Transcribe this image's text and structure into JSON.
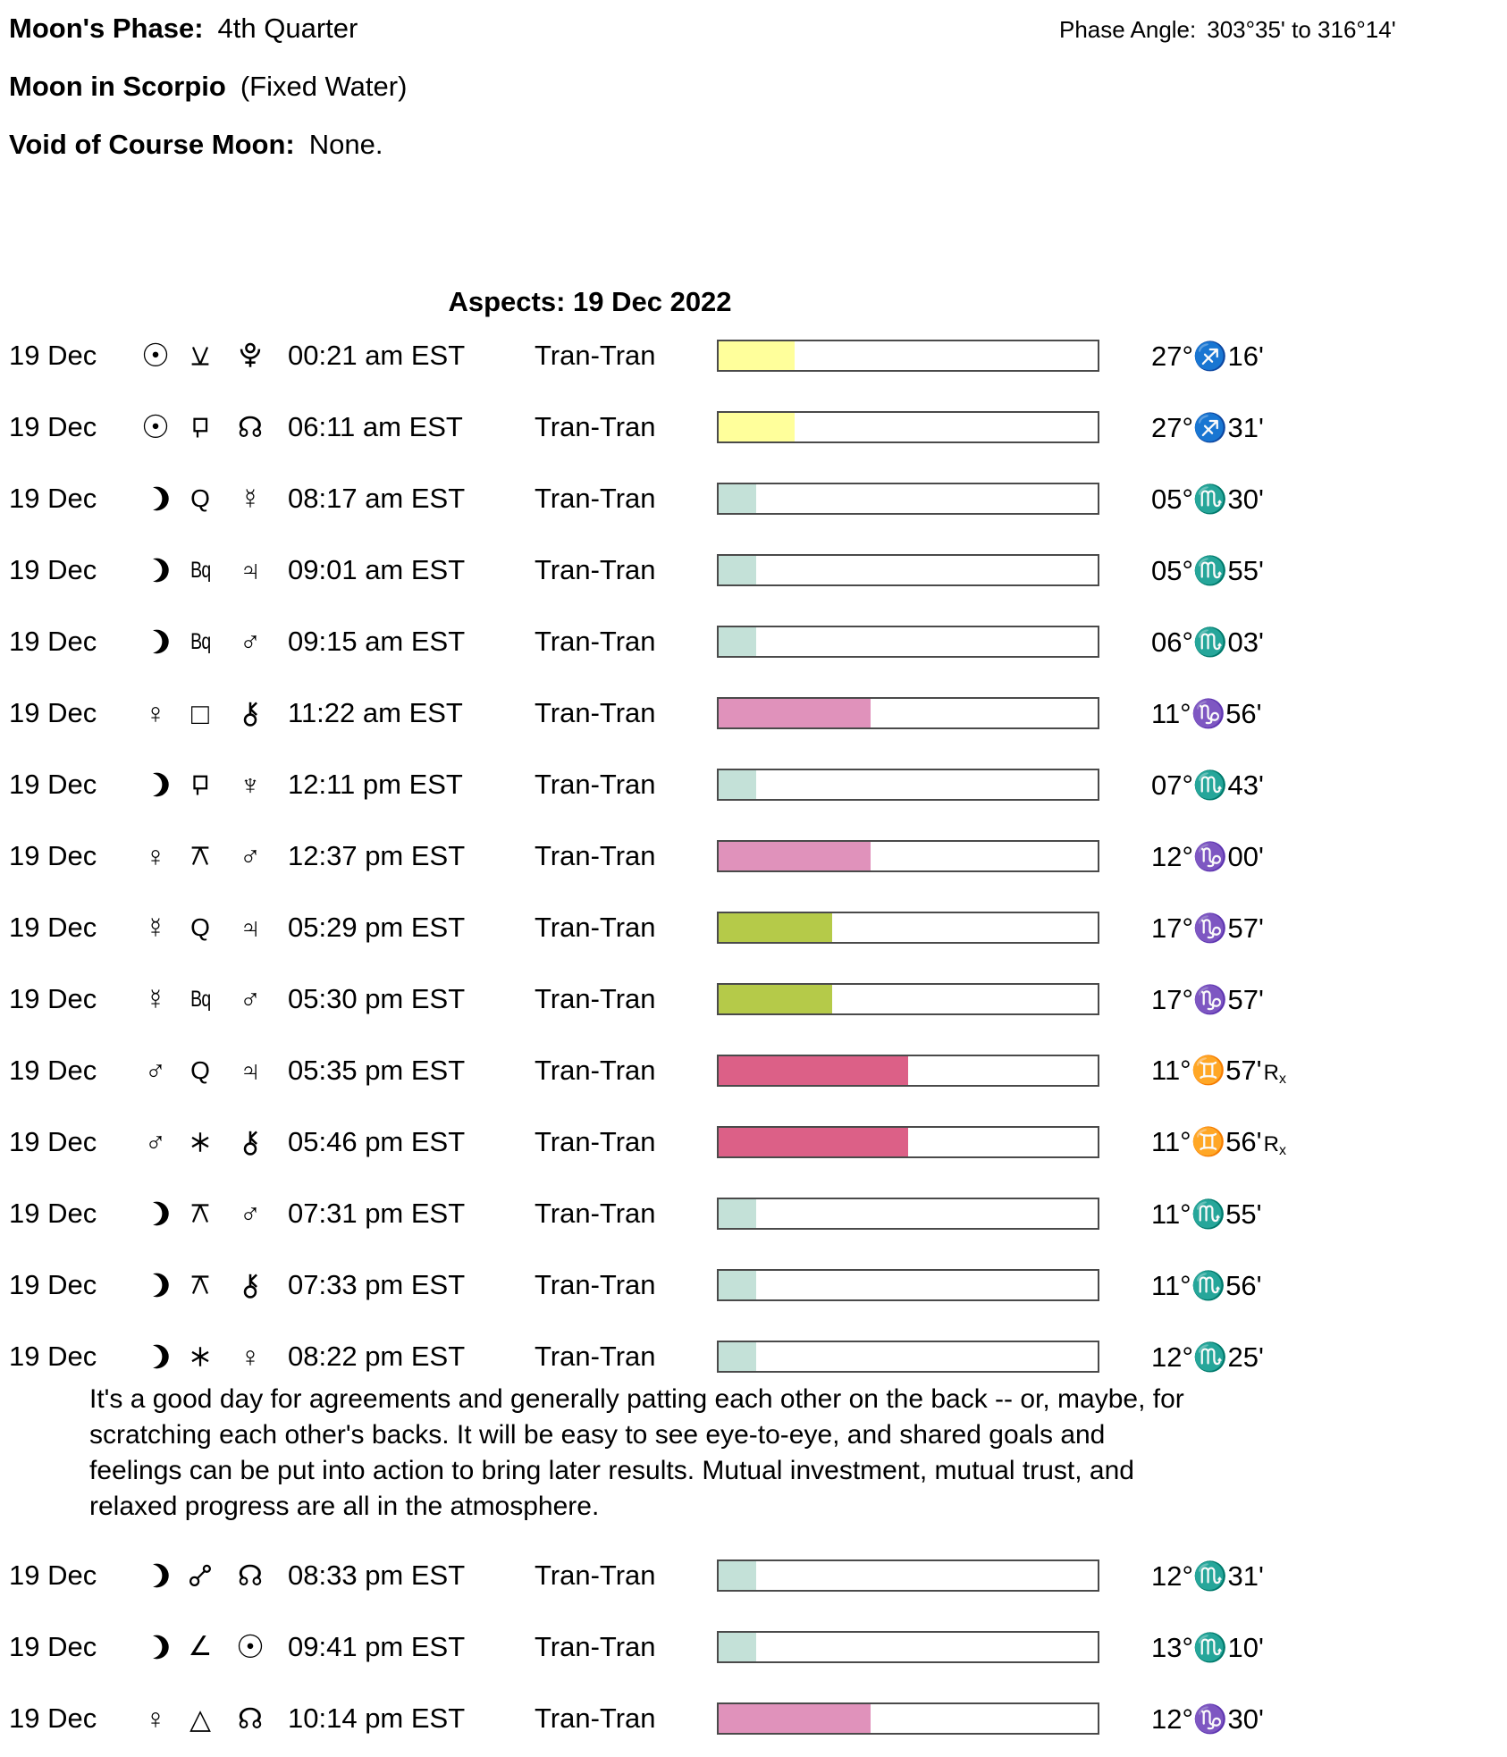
{
  "header": {
    "moons_phase_label": "Moon's Phase:",
    "moons_phase_value": "4th Quarter",
    "phase_angle_label": "Phase Angle:",
    "phase_angle_value": "303°35' to 316°14'",
    "moon_in_label": "Moon in Scorpio",
    "moon_in_value": "(Fixed Water)",
    "voc_label": "Void of Course Moon:",
    "voc_value": "None."
  },
  "aspects": {
    "title": "Aspects: 19 Dec 2022",
    "interpretation": "It's a good day for agreements and generally patting each other on the back -- or, maybe, for scratching each other's backs. It will be easy to see eye-to-eye, and shared goals and feelings can be put into action to bring later results. Mutual investment, mutual trust, and relaxed progress are all in the atmosphere.",
    "interpretation_after_row": 15,
    "bar_border_color": "#4a4a4a",
    "bar_colors": {
      "yellow": "#ffff9b",
      "teal": "#c4e1d8",
      "pink": "#e092bb",
      "green": "#b5ca49",
      "rose": "#dc6087"
    },
    "rows": [
      {
        "date": "19 Dec",
        "p1": "sun",
        "aspect": "semisextile",
        "p2": "pluto",
        "time": "00:21 am EST",
        "type": "Tran-Tran",
        "bar_color": "yellow",
        "bar_percent": 20,
        "position": {
          "deg": "27°",
          "sign": "♐",
          "min": "16'",
          "retro": ""
        }
      },
      {
        "date": "19 Dec",
        "p1": "sun",
        "aspect": "sesquiquadrate",
        "p2": "north-node",
        "time": "06:11 am EST",
        "type": "Tran-Tran",
        "bar_color": "yellow",
        "bar_percent": 20,
        "position": {
          "deg": "27°",
          "sign": "♐",
          "min": "31'",
          "retro": ""
        }
      },
      {
        "date": "19 Dec",
        "p1": "moon",
        "aspect": "quintile",
        "p2": "mercury",
        "time": "08:17 am EST",
        "type": "Tran-Tran",
        "bar_color": "teal",
        "bar_percent": 10,
        "position": {
          "deg": "05°",
          "sign": "♏",
          "min": "30'",
          "retro": ""
        }
      },
      {
        "date": "19 Dec",
        "p1": "moon",
        "aspect": "biquintile",
        "p2": "jupiter",
        "time": "09:01 am EST",
        "type": "Tran-Tran",
        "bar_color": "teal",
        "bar_percent": 10,
        "position": {
          "deg": "05°",
          "sign": "♏",
          "min": "55'",
          "retro": ""
        }
      },
      {
        "date": "19 Dec",
        "p1": "moon",
        "aspect": "biquintile",
        "p2": "mars",
        "time": "09:15 am EST",
        "type": "Tran-Tran",
        "bar_color": "teal",
        "bar_percent": 10,
        "position": {
          "deg": "06°",
          "sign": "♏",
          "min": "03'",
          "retro": ""
        }
      },
      {
        "date": "19 Dec",
        "p1": "venus",
        "aspect": "square",
        "p2": "chiron",
        "time": "11:22 am EST",
        "type": "Tran-Tran",
        "bar_color": "pink",
        "bar_percent": 40,
        "position": {
          "deg": "11°",
          "sign": "♑",
          "min": "56'",
          "retro": ""
        }
      },
      {
        "date": "19 Dec",
        "p1": "moon",
        "aspect": "sesquiquadrate",
        "p2": "neptune",
        "time": "12:11 pm EST",
        "type": "Tran-Tran",
        "bar_color": "teal",
        "bar_percent": 10,
        "position": {
          "deg": "07°",
          "sign": "♏",
          "min": "43'",
          "retro": ""
        }
      },
      {
        "date": "19 Dec",
        "p1": "venus",
        "aspect": "quincunx",
        "p2": "mars",
        "time": "12:37 pm EST",
        "type": "Tran-Tran",
        "bar_color": "pink",
        "bar_percent": 40,
        "position": {
          "deg": "12°",
          "sign": "♑",
          "min": "00'",
          "retro": ""
        }
      },
      {
        "date": "19 Dec",
        "p1": "mercury",
        "aspect": "quintile",
        "p2": "jupiter",
        "time": "05:29 pm EST",
        "type": "Tran-Tran",
        "bar_color": "green",
        "bar_percent": 30,
        "position": {
          "deg": "17°",
          "sign": "♑",
          "min": "57'",
          "retro": ""
        }
      },
      {
        "date": "19 Dec",
        "p1": "mercury",
        "aspect": "biquintile",
        "p2": "mars",
        "time": "05:30 pm EST",
        "type": "Tran-Tran",
        "bar_color": "green",
        "bar_percent": 30,
        "position": {
          "deg": "17°",
          "sign": "♑",
          "min": "57'",
          "retro": ""
        }
      },
      {
        "date": "19 Dec",
        "p1": "mars",
        "aspect": "quintile",
        "p2": "jupiter",
        "time": "05:35 pm EST",
        "type": "Tran-Tran",
        "bar_color": "rose",
        "bar_percent": 50,
        "position": {
          "deg": "11°",
          "sign": "♊",
          "min": "57'",
          "retro": "Rx"
        }
      },
      {
        "date": "19 Dec",
        "p1": "mars",
        "aspect": "sextile",
        "p2": "chiron",
        "time": "05:46 pm EST",
        "type": "Tran-Tran",
        "bar_color": "rose",
        "bar_percent": 50,
        "position": {
          "deg": "11°",
          "sign": "♊",
          "min": "56'",
          "retro": "Rx"
        }
      },
      {
        "date": "19 Dec",
        "p1": "moon",
        "aspect": "quincunx",
        "p2": "mars",
        "time": "07:31 pm EST",
        "type": "Tran-Tran",
        "bar_color": "teal",
        "bar_percent": 10,
        "position": {
          "deg": "11°",
          "sign": "♏",
          "min": "55'",
          "retro": ""
        }
      },
      {
        "date": "19 Dec",
        "p1": "moon",
        "aspect": "quincunx",
        "p2": "chiron",
        "time": "07:33 pm EST",
        "type": "Tran-Tran",
        "bar_color": "teal",
        "bar_percent": 10,
        "position": {
          "deg": "11°",
          "sign": "♏",
          "min": "56'",
          "retro": ""
        }
      },
      {
        "date": "19 Dec",
        "p1": "moon",
        "aspect": "sextile",
        "p2": "venus",
        "time": "08:22 pm EST",
        "type": "Tran-Tran",
        "bar_color": "teal",
        "bar_percent": 10,
        "position": {
          "deg": "12°",
          "sign": "♏",
          "min": "25'",
          "retro": ""
        }
      },
      {
        "date": "19 Dec",
        "p1": "moon",
        "aspect": "opposition",
        "p2": "north-node",
        "time": "08:33 pm EST",
        "type": "Tran-Tran",
        "bar_color": "teal",
        "bar_percent": 10,
        "position": {
          "deg": "12°",
          "sign": "♏",
          "min": "31'",
          "retro": ""
        }
      },
      {
        "date": "19 Dec",
        "p1": "moon",
        "aspect": "semisquare",
        "p2": "sun",
        "time": "09:41 pm EST",
        "type": "Tran-Tran",
        "bar_color": "teal",
        "bar_percent": 10,
        "position": {
          "deg": "13°",
          "sign": "♏",
          "min": "10'",
          "retro": ""
        }
      },
      {
        "date": "19 Dec",
        "p1": "venus",
        "aspect": "trine",
        "p2": "north-node",
        "time": "10:14 pm EST",
        "type": "Tran-Tran",
        "bar_color": "pink",
        "bar_percent": 40,
        "position": {
          "deg": "12°",
          "sign": "♑",
          "min": "30'",
          "retro": ""
        }
      }
    ]
  }
}
